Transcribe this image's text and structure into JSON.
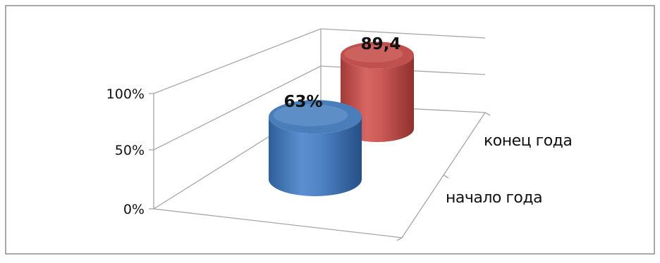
{
  "chart_data": {
    "type": "bar",
    "categories": [
      "начало года",
      "конец года"
    ],
    "values": [
      63,
      89.4
    ],
    "data_labels": [
      "63%",
      "89,4"
    ],
    "y_ticks": [
      "0%",
      "50%",
      "100%"
    ],
    "ylim": [
      0,
      100
    ],
    "grid": true,
    "legend": "none",
    "style": "3d-cylinder",
    "colors": {
      "series": [
        "#4a7ebb",
        "#c0504d"
      ],
      "axis": "#a6a6a6",
      "frame": "#7f7f7f"
    }
  }
}
